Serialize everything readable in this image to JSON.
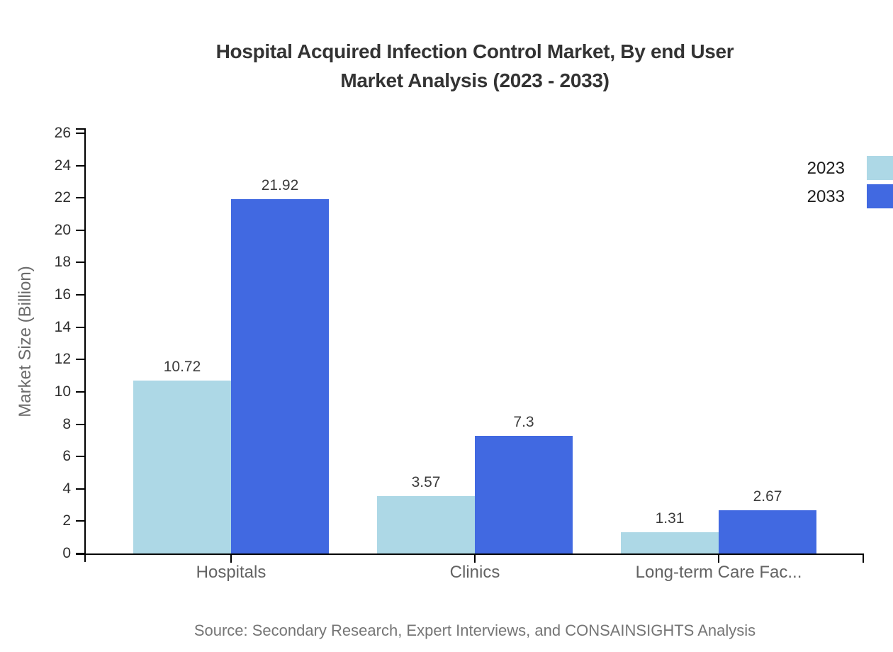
{
  "chart_data": {
    "type": "bar",
    "title_line1": "Hospital Acquired Infection Control Market, By end User",
    "title_line2": "Market Analysis (2023 - 2033)",
    "categories": [
      "Hospitals",
      "Clinics",
      "Long-term Care Fac..."
    ],
    "series": [
      {
        "name": "2023",
        "color": "#ADD8E6",
        "values": [
          10.72,
          3.57,
          1.31
        ]
      },
      {
        "name": "2033",
        "color": "#4169E1",
        "values": [
          21.92,
          7.3,
          2.67
        ]
      }
    ],
    "value_labels": [
      "10.72",
      "21.92",
      "3.57",
      "7.3",
      "1.31",
      "2.67"
    ],
    "xlabel": "",
    "ylabel": "Market Size (Billion)",
    "ylim": [
      0,
      26
    ],
    "ytick_step": 2,
    "grid": false,
    "legend_position": "top-right",
    "axis_color": "#000000",
    "title_color": "#333333",
    "background_color": "#ffffff"
  },
  "source_note": "Source: Secondary Research, Expert Interviews, and CONSAINSIGHTS Analysis"
}
